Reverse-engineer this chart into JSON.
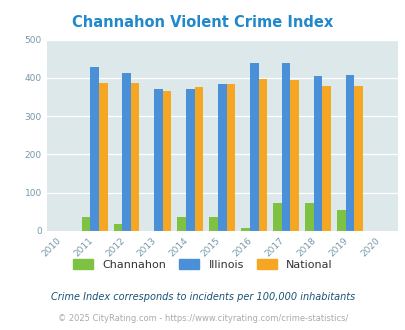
{
  "title": "Channahon Violent Crime Index",
  "title_color": "#2288cc",
  "years": [
    2011,
    2012,
    2013,
    2014,
    2015,
    2016,
    2017,
    2018,
    2019
  ],
  "channahon": [
    37,
    18,
    0,
    37,
    37,
    9,
    73,
    73,
    55
  ],
  "illinois": [
    428,
    414,
    372,
    370,
    383,
    438,
    438,
    405,
    407
  ],
  "national": [
    387,
    387,
    367,
    376,
    383,
    397,
    394,
    379,
    379
  ],
  "channahon_color": "#7dc242",
  "illinois_color": "#4a90d9",
  "national_color": "#f5a623",
  "bg_color": "#dde8ea",
  "xlim": [
    2009.5,
    2020.5
  ],
  "ylim": [
    0,
    500
  ],
  "yticks": [
    0,
    100,
    200,
    300,
    400,
    500
  ],
  "bar_width": 0.27,
  "footnote": "Crime Index corresponds to incidents per 100,000 inhabitants",
  "footnote_color": "#1a5276",
  "copyright": "© 2025 CityRating.com - https://www.cityrating.com/crime-statistics/",
  "copyright_color": "#aaaaaa",
  "tick_color": "#7799aa"
}
